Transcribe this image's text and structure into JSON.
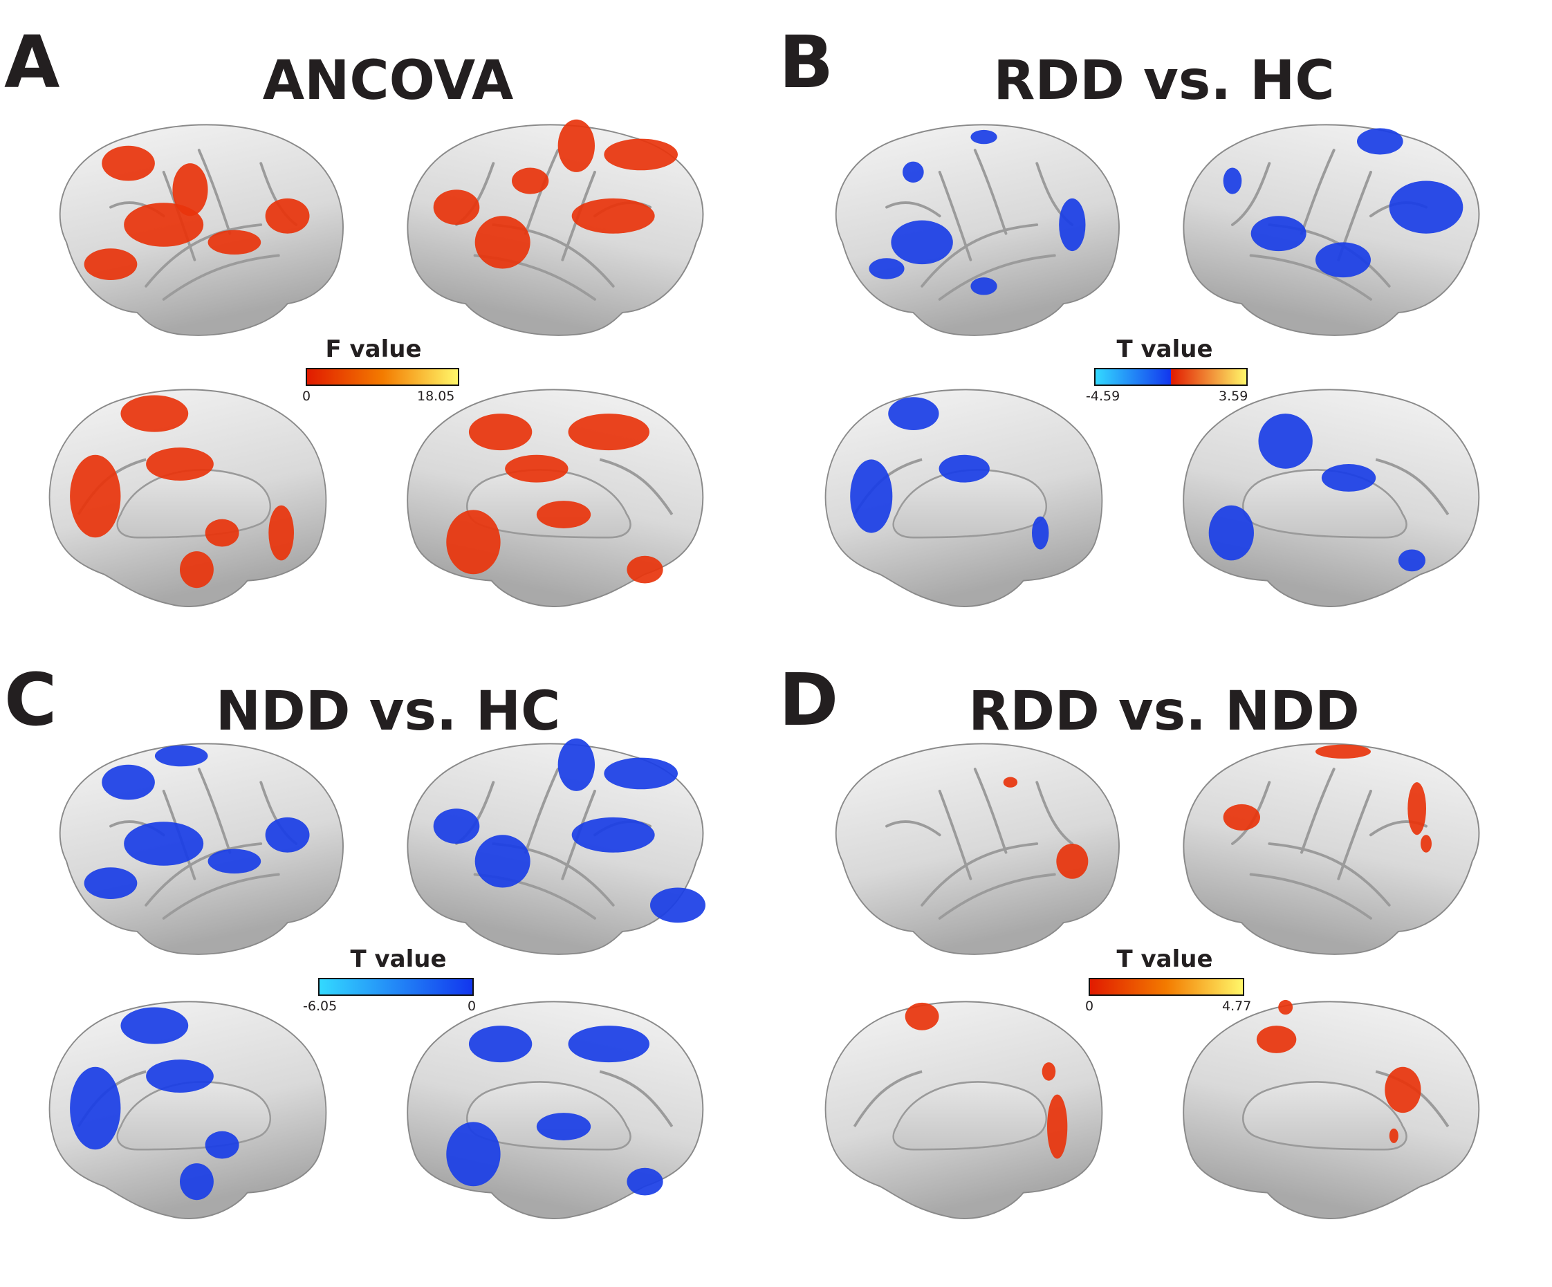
{
  "panels": [
    {
      "letter": "A",
      "title": "ANCOVA",
      "colorbar": {
        "label": "F value",
        "min_label": "0",
        "max_label": "18.05",
        "colors": [
          "#e11b00",
          "#f37b00",
          "#fff76a"
        ]
      },
      "overlay_color": "#e8340c"
    },
    {
      "letter": "B",
      "title": "RDD vs. HC",
      "colorbar": {
        "label": "T value",
        "min_label": "-4.59",
        "max_label": "3.59",
        "colors": [
          "#33d9ff",
          "#1236ee",
          "#e11b00",
          "#fff76a"
        ]
      },
      "overlay_color": "#1a3ee6"
    },
    {
      "letter": "C",
      "title": "NDD vs. HC",
      "colorbar": {
        "label": "T value",
        "min_label": "-6.05",
        "max_label": "0",
        "colors": [
          "#33d9ff",
          "#1236ee"
        ]
      },
      "overlay_color": "#1a3ee6"
    },
    {
      "letter": "D",
      "title": "RDD vs. NDD",
      "colorbar": {
        "label": "T value",
        "min_label": "0",
        "max_label": "4.77",
        "colors": [
          "#e11b00",
          "#f37b00",
          "#fff76a"
        ]
      },
      "overlay_color": "#e8340c"
    }
  ]
}
